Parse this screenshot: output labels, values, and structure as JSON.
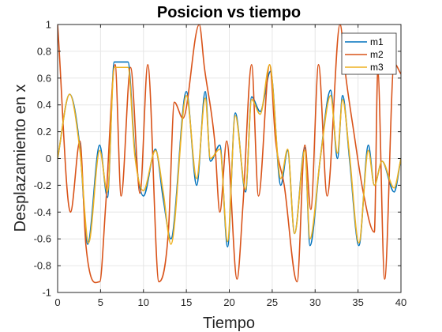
{
  "chart_data": {
    "type": "line",
    "title": "Posicion vs tiempo",
    "xlabel": "Tiempo",
    "ylabel": "Desplazamiento en x",
    "xlim": [
      0,
      40
    ],
    "ylim": [
      -1,
      1
    ],
    "xticks": [
      "0",
      "5",
      "10",
      "15",
      "20",
      "25",
      "30",
      "35",
      "40"
    ],
    "yticks": [
      "-1",
      "-0.8",
      "-0.6",
      "-0.4",
      "-0.2",
      "0",
      "0.2",
      "0.4",
      "0.6",
      "0.8",
      "1"
    ],
    "grid": true,
    "legend_position": "top-right",
    "series": [
      {
        "name": "m1",
        "color": "#0072BD",
        "x": [
          0,
          1.4,
          2.6,
          3.5,
          4.9,
          5.8,
          6.6,
          8.2,
          9.0,
          10.0,
          11.4,
          12.3,
          13.2,
          15.0,
          16.2,
          17.2,
          17.8,
          18.9,
          19.8,
          20.7,
          21.9,
          22.6,
          23.6,
          24.8,
          26.0,
          26.8,
          27.6,
          28.8,
          29.4,
          30.6,
          31.8,
          32.6,
          33.2,
          34.0,
          35.1,
          36.2,
          36.9,
          37.8,
          39.2,
          40.0
        ],
        "y": [
          0,
          0.48,
          0.08,
          -0.64,
          0.1,
          -0.29,
          0.72,
          0.72,
          0.05,
          -0.28,
          0.07,
          -0.3,
          -0.6,
          0.5,
          -0.2,
          0.5,
          -0.02,
          0.1,
          -0.66,
          0.34,
          -0.25,
          0.46,
          0.35,
          0.65,
          -0.2,
          0.06,
          -0.56,
          0.08,
          -0.65,
          0.0,
          0.51,
          0.0,
          0.47,
          0.0,
          -0.65,
          0.1,
          -0.2,
          -0.02,
          -0.25,
          0.0
        ]
      },
      {
        "name": "m2",
        "color": "#D95319",
        "x": [
          0,
          1.5,
          2.6,
          3.3,
          4.9,
          5.6,
          6.7,
          7.4,
          8.5,
          9.6,
          10.5,
          11.8,
          12.9,
          13.6,
          14.6,
          16.5,
          17.1,
          18.3,
          18.9,
          19.7,
          20.9,
          21.6,
          22.6,
          23.4,
          24.7,
          25.4,
          26.4,
          27.9,
          28.8,
          29.5,
          30.4,
          31.4,
          32.9,
          33.6,
          34.5,
          35.6,
          36.9,
          37.3,
          38.1,
          39.2,
          40.0
        ],
        "y": [
          1.0,
          -0.4,
          0.13,
          -0.65,
          -0.92,
          -0.35,
          0.7,
          -0.28,
          0.68,
          -0.26,
          0.7,
          -0.92,
          -0.55,
          0.42,
          0.3,
          1.0,
          0.68,
          0.13,
          -0.4,
          0.13,
          -0.9,
          -0.34,
          0.7,
          -0.28,
          0.7,
          0.13,
          -0.2,
          -0.92,
          0.1,
          -0.38,
          0.7,
          -0.28,
          1.0,
          0.6,
          0.2,
          -0.25,
          -0.55,
          0.65,
          -0.9,
          0.71,
          0.63
        ]
      },
      {
        "name": "m3",
        "color": "#EDB120",
        "x": [
          0,
          1.4,
          2.6,
          3.6,
          4.9,
          5.8,
          6.6,
          8.2,
          9.0,
          10.0,
          11.4,
          12.3,
          13.2,
          15.0,
          16.2,
          17.2,
          17.8,
          18.9,
          19.8,
          20.7,
          21.9,
          22.6,
          23.6,
          24.7,
          26.0,
          26.8,
          27.6,
          28.8,
          29.4,
          30.6,
          31.8,
          32.6,
          33.2,
          34.0,
          35.1,
          36.2,
          36.9,
          37.8,
          39.2,
          40.0
        ],
        "y": [
          0,
          0.48,
          0.06,
          -0.63,
          0.06,
          -0.25,
          0.68,
          0.68,
          0.02,
          -0.24,
          0.06,
          -0.25,
          -0.64,
          0.47,
          -0.15,
          0.45,
          0.0,
          0.07,
          -0.62,
          0.32,
          -0.23,
          0.44,
          0.33,
          0.7,
          -0.15,
          0.07,
          -0.56,
          0.06,
          -0.6,
          0.0,
          0.47,
          0.04,
          0.44,
          0.03,
          -0.63,
          0.06,
          -0.2,
          -0.02,
          -0.22,
          0.0
        ]
      }
    ]
  }
}
